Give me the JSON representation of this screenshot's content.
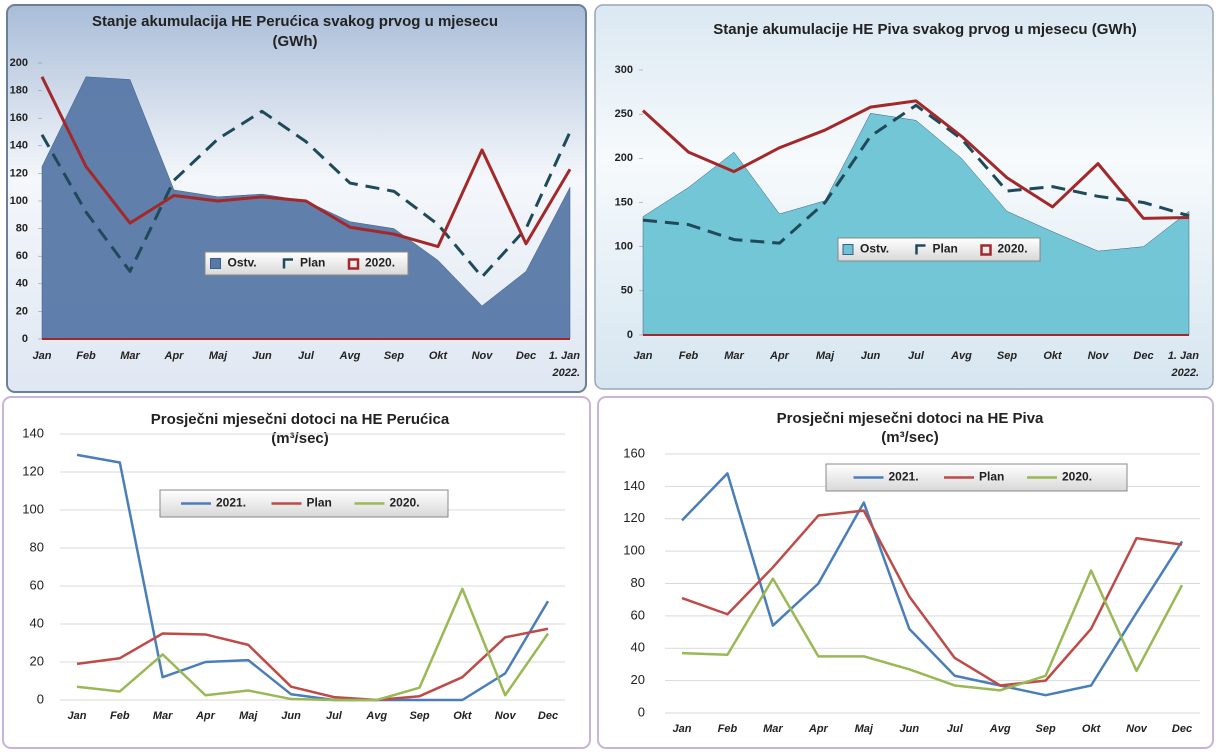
{
  "chart_data": [
    {
      "type": "area",
      "title": [
        "Stanje akumulacija HE Perućica svakog prvog u mjesecu",
        "(GWh)"
      ],
      "categories": [
        "Jan",
        "Feb",
        "Mar",
        "Apr",
        "Maj",
        "Jun",
        "Jul",
        "Avg",
        "Sep",
        "Okt",
        "Nov",
        "Dec",
        "1. Jan 2022."
      ],
      "series": [
        {
          "name": "Ostv.",
          "style": "area",
          "color": "#5878a6",
          "values": [
            125,
            190,
            188,
            108,
            103,
            105,
            100,
            85,
            80,
            57,
            24,
            49,
            110
          ]
        },
        {
          "name": "Plan",
          "style": "dashed",
          "color": "#1e4a5a",
          "values": [
            148,
            92,
            49,
            115,
            145,
            165,
            143,
            113,
            107,
            83,
            45,
            80,
            150
          ]
        },
        {
          "name": "2020.",
          "style": "line",
          "color": "#a3282a",
          "values": [
            190,
            125,
            84,
            104,
            100,
            103,
            100,
            81,
            76,
            67,
            137,
            69,
            123
          ]
        }
      ],
      "ylim": [
        0,
        200
      ],
      "yticks": [
        0,
        20,
        40,
        60,
        80,
        100,
        120,
        140,
        160,
        180,
        200
      ],
      "grid": false,
      "legend_position": "center"
    },
    {
      "type": "area",
      "title": [
        "Stanje akumulacije HE Piva svakog prvog u mjesecu (GWh)"
      ],
      "categories": [
        "Jan",
        "Feb",
        "Mar",
        "Apr",
        "Maj",
        "Jun",
        "Jul",
        "Avg",
        "Sep",
        "Okt",
        "Nov",
        "Dec",
        "1. Jan 2022."
      ],
      "series": [
        {
          "name": "Ostv.",
          "style": "area",
          "color": "#6cc3d3",
          "values": [
            134,
            167,
            207,
            137,
            152,
            251,
            243,
            200,
            140,
            117,
            95,
            100,
            140
          ]
        },
        {
          "name": "Plan",
          "style": "dashed",
          "color": "#1e4a5a",
          "values": [
            130,
            125,
            108,
            104,
            150,
            225,
            260,
            222,
            163,
            168,
            157,
            150,
            135
          ]
        },
        {
          "name": "2020.",
          "style": "line",
          "color": "#a3282a",
          "values": [
            254,
            207,
            185,
            212,
            232,
            258,
            265,
            225,
            178,
            145,
            194,
            132,
            133
          ]
        }
      ],
      "ylim": [
        0,
        300
      ],
      "yticks": [
        0,
        50,
        100,
        150,
        200,
        250,
        300
      ],
      "grid": false,
      "legend_position": "center"
    },
    {
      "type": "line",
      "title": [
        "Prosječni mjesečni dotoci na HE Perućica",
        "(m³/sec)"
      ],
      "categories": [
        "Jan",
        "Feb",
        "Mar",
        "Apr",
        "Maj",
        "Jun",
        "Jul",
        "Avg",
        "Sep",
        "Okt",
        "Nov",
        "Dec"
      ],
      "series": [
        {
          "name": "2021.",
          "style": "line",
          "color": "#4a7ebb",
          "values": [
            129,
            125,
            12,
            20,
            21,
            3,
            0,
            0,
            0,
            0,
            14,
            52
          ]
        },
        {
          "name": "Plan",
          "style": "line",
          "color": "#be4b48",
          "values": [
            19,
            22,
            35,
            34.5,
            29,
            7,
            1.5,
            0,
            2,
            12,
            33,
            37.5
          ]
        },
        {
          "name": "2020.",
          "style": "line",
          "color": "#98b954",
          "values": [
            7,
            4.5,
            24,
            2.5,
            5,
            0.5,
            0,
            0,
            6.5,
            58.5,
            2.5,
            35
          ]
        }
      ],
      "ylim": [
        0,
        140
      ],
      "yticks": [
        0,
        20,
        40,
        60,
        80,
        100,
        120,
        140
      ],
      "grid": true,
      "legend_position": "top"
    },
    {
      "type": "line",
      "title": [
        "Prosječni mjesečni dotoci na HE Piva",
        "(m³/sec)"
      ],
      "categories": [
        "Jan",
        "Feb",
        "Mar",
        "Apr",
        "Maj",
        "Jun",
        "Jul",
        "Avg",
        "Sep",
        "Okt",
        "Nov",
        "Dec"
      ],
      "series": [
        {
          "name": "2021.",
          "style": "line",
          "color": "#4a7ebb",
          "values": [
            119,
            148,
            54,
            80,
            130,
            52,
            23,
            17,
            11,
            17,
            62,
            106
          ]
        },
        {
          "name": "Plan",
          "style": "line",
          "color": "#be4b48",
          "values": [
            71,
            61,
            90,
            122,
            125,
            72,
            34,
            17,
            20,
            52,
            108,
            104
          ]
        },
        {
          "name": "2020.",
          "style": "line",
          "color": "#98b954",
          "values": [
            37,
            36,
            83,
            35,
            35,
            27,
            17,
            14,
            23,
            88,
            26,
            79
          ]
        }
      ],
      "ylim": [
        0,
        160
      ],
      "yticks": [
        0,
        20,
        40,
        60,
        80,
        100,
        120,
        140,
        160
      ],
      "grid": true,
      "legend_position": "top"
    }
  ]
}
